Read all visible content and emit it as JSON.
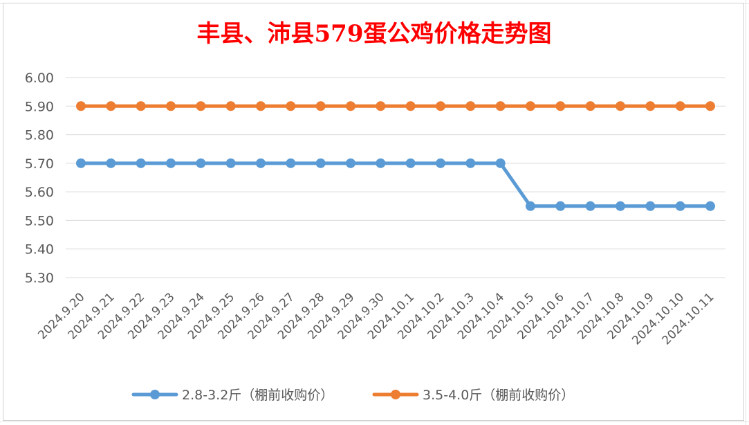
{
  "chart_data": {
    "type": "line",
    "title": "丰县、沛县579蛋公鸡价格走势图",
    "xlabel": "",
    "ylabel": "",
    "ylim": [
      5.3,
      6.0
    ],
    "yticks": [
      "5.30",
      "5.40",
      "5.50",
      "5.60",
      "5.70",
      "5.80",
      "5.90",
      "6.00"
    ],
    "grid": true,
    "legend_position": "bottom",
    "categories": [
      "2024.9.20",
      "2024.9.21",
      "2024.9.22",
      "2024.9.23",
      "2024.9.24",
      "2024.9.25",
      "2024.9.26",
      "2024.9.27",
      "2024.9.28",
      "2024.9.29",
      "2024.9.30",
      "2024.10.1",
      "2024.10.2",
      "2024.10.3",
      "2024.10.4",
      "2024.10.5",
      "2024.10.6",
      "2024.10.7",
      "2024.10.8",
      "2024.10.9",
      "2024.10.10",
      "2024.10.11"
    ],
    "series": [
      {
        "name": "2.8-3.2斤（棚前收购价）",
        "color": "#5b9bd5",
        "values": [
          5.7,
          5.7,
          5.7,
          5.7,
          5.7,
          5.7,
          5.7,
          5.7,
          5.7,
          5.7,
          5.7,
          5.7,
          5.7,
          5.7,
          5.7,
          5.55,
          5.55,
          5.55,
          5.55,
          5.55,
          5.55,
          5.55
        ]
      },
      {
        "name": "3.5-4.0斤（棚前收购价）",
        "color": "#ed7d31",
        "values": [
          5.9,
          5.9,
          5.9,
          5.9,
          5.9,
          5.9,
          5.9,
          5.9,
          5.9,
          5.9,
          5.9,
          5.9,
          5.9,
          5.9,
          5.9,
          5.9,
          5.9,
          5.9,
          5.9,
          5.9,
          5.9,
          5.9
        ]
      }
    ]
  }
}
